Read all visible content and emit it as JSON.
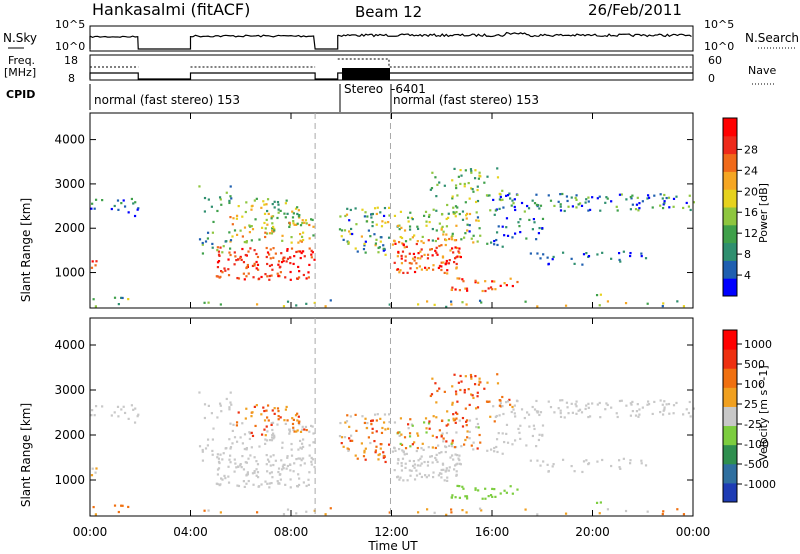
{
  "header": {
    "station": "Hankasalmi (fitACF)",
    "beam": "Beam 12",
    "date": "26/Feb/2011"
  },
  "panels": {
    "nsky": {
      "left_label": "N.Sky",
      "right_label": "N.Search",
      "left_ticks": [
        "10^5",
        "10^0"
      ],
      "right_ticks": [
        "10^5",
        "10^0"
      ]
    },
    "freq": {
      "left_label": "Freq.",
      "left_unit": "[MHz]",
      "right_label": "Nave",
      "left_ticks": [
        "18",
        "8"
      ],
      "right_ticks": [
        "60",
        "0"
      ]
    },
    "cpid": {
      "label": "CPID",
      "segments": [
        "normal (fast stereo) 153",
        "Stereo",
        "-6401",
        "normal (fast stereo) 153"
      ]
    }
  },
  "chart_data": [
    {
      "type": "heatmap",
      "title": "",
      "xlabel": "Time UT",
      "ylabel": "Slant Range [km]",
      "x_ticks": [
        "00:00",
        "04:00",
        "08:00",
        "12:00",
        "16:00",
        "20:00",
        "00:00"
      ],
      "y_ticks": [
        "1000",
        "2000",
        "3000",
        "4000"
      ],
      "xlim_hours": [
        0,
        24
      ],
      "ylim_km": [
        200,
        4600
      ],
      "colorbar": {
        "label": "Power [dB]",
        "ticks": [
          "4",
          "8",
          "12",
          "16",
          "20",
          "24",
          "28"
        ],
        "colors": [
          "#0000ff",
          "#1f5fb0",
          "#2f8f6f",
          "#3fa04a",
          "#8ec63f",
          "#e6d21e",
          "#f5a623",
          "#f06a1a",
          "#ee2a1a",
          "#ff0000"
        ]
      }
    },
    {
      "type": "heatmap",
      "title": "",
      "xlabel": "Time UT",
      "ylabel": "Slant Range [km]",
      "x_ticks": [
        "00:00",
        "04:00",
        "08:00",
        "12:00",
        "16:00",
        "20:00",
        "00:00"
      ],
      "y_ticks": [
        "1000",
        "2000",
        "3000",
        "4000"
      ],
      "xlim_hours": [
        0,
        24
      ],
      "ylim_km": [
        200,
        4600
      ],
      "colorbar": {
        "label": "Velocity [m s^-1]",
        "ticks": [
          "1000",
          "500",
          "100",
          "25",
          "-25",
          "-100",
          "-500",
          "-1000"
        ],
        "colors": [
          "#1e3cb4",
          "#2f6f9f",
          "#2f8f4f",
          "#7ccd3f",
          "#c8c8c8",
          "#f0a020",
          "#f07010",
          "#ee3010",
          "#ff0000"
        ]
      }
    }
  ],
  "colors": {
    "ground_scatter": "#c0c0c0"
  }
}
